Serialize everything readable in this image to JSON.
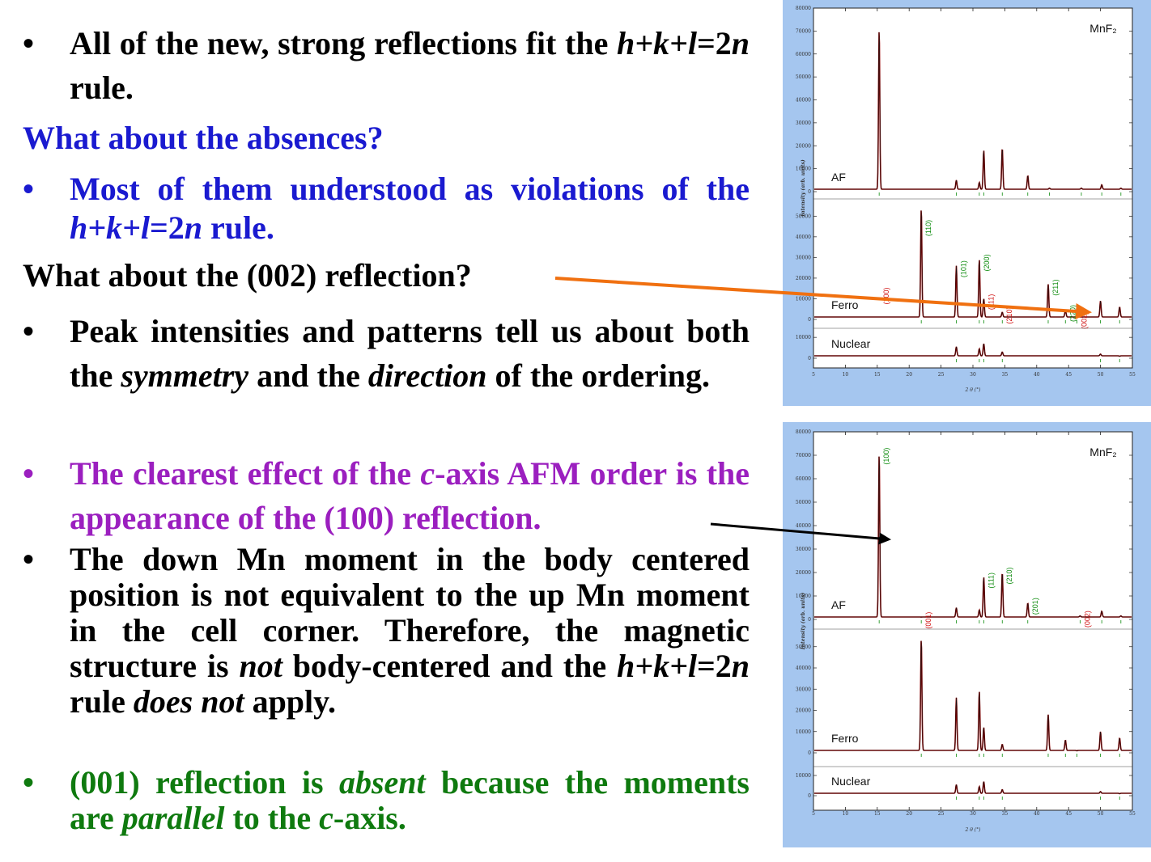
{
  "bullet_glyph": "•",
  "text": {
    "b1_a": "All of the new, strong reflections fit the",
    "b1_hkl": "h+k+l",
    "b1_eq": "=2",
    "b1_n": "n",
    "b1_rest": " rule.",
    "q1": "What about the absences?",
    "b2_a": "Most of them understood as violations of the",
    "b2_hkl": "h+k+l",
    "b2_eq": "=2",
    "b2_n": "n",
    "b2_rest": " rule.",
    "q2": "What about the (002) reflection?",
    "b3_a": "Peak intensities and patterns tell us about both the",
    "b3_sym": "symmetry",
    "b3_b": "and the",
    "b3_dir": "direction",
    "b3_c": "of the ordering.",
    "b4_a": "The clearest effect of the",
    "b4_c": "c",
    "b4_b": "-axis AFM order is the appearance of the (100) reflection.",
    "b5_a": "The down Mn moment in the body centered position is not equivalent to the up Mn moment in the cell corner. Therefore, the magnetic structure is",
    "b5_not": "not",
    "b5_b": "body-centered and the",
    "b5_hkl": "h+k+l",
    "b5_eq": "=2",
    "b5_n": "n",
    "b5_c": "rule",
    "b5_does": "does not",
    "b5_d": "apply.",
    "b6_a": "(001) reflection is",
    "b6_absent": "absent",
    "b6_b": "because the moments are",
    "b6_par": "parallel",
    "b6_c": "to the",
    "b6_cc": "c",
    "b6_d": "-axis."
  },
  "colors": {
    "blue": "#1a1ad0",
    "purple": "#9b1fbf",
    "green": "#0f7a0f",
    "panel_bg": "#a5c6ef",
    "orange_arrow": "#f07010",
    "black_arrow": "#000000",
    "calc_line": "#8b0000",
    "hkl_green": "#0a8a0a",
    "hkl_red": "#d01010"
  },
  "chart_data": [
    {
      "type": "line",
      "title": "MnF₂",
      "ylabel": "Intensity (arb. units)",
      "xlabel": "2 θ (°)",
      "xlim": [
        5,
        55
      ],
      "x_ticks": [
        5,
        10,
        15,
        20,
        25,
        30,
        35,
        40,
        45,
        50,
        55
      ],
      "panels": [
        {
          "name": "AF",
          "ylim": [
            0,
            80000
          ],
          "y_ticks": [
            0,
            10000,
            20000,
            30000,
            40000,
            50000,
            60000,
            70000,
            80000
          ],
          "peaks": [
            [
              15.3,
              71000
            ],
            [
              27.4,
              5000
            ],
            [
              31.0,
              4000
            ],
            [
              31.7,
              18000
            ],
            [
              34.6,
              19000
            ],
            [
              38.6,
              7000
            ],
            [
              42.0,
              1500
            ],
            [
              47.0,
              1500
            ],
            [
              50.2,
              3000
            ],
            [
              53.2,
              1500
            ]
          ],
          "hkl": []
        },
        {
          "name": "Ferro",
          "ylim": [
            0,
            56000
          ],
          "y_ticks": [
            0,
            10000,
            20000,
            30000,
            40000,
            50000
          ],
          "peaks": [
            [
              21.9,
              54000
            ],
            [
              27.4,
              26000
            ],
            [
              31.0,
              29000
            ],
            [
              31.7,
              10000
            ],
            [
              34.6,
              3500
            ],
            [
              41.8,
              17000
            ],
            [
              44.5,
              4500
            ],
            [
              46.3,
              1000
            ],
            [
              50.0,
              9000
            ],
            [
              53.0,
              6000
            ]
          ],
          "hkl": [
            {
              "label": "(110)",
              "x": 21.9,
              "color": "green"
            },
            {
              "label": "(101)",
              "x": 27.4,
              "color": "green"
            },
            {
              "label": "(200)",
              "x": 31.0,
              "color": "green"
            },
            {
              "label": "(111)",
              "x": 31.7,
              "color": "red"
            },
            {
              "label": "(210)",
              "x": 34.6,
              "color": "red"
            },
            {
              "label": "(211)",
              "x": 41.8,
              "color": "green"
            },
            {
              "label": "(220)",
              "x": 44.5,
              "color": "green"
            },
            {
              "label": "(002)",
              "x": 46.3,
              "color": "red"
            },
            {
              "label": "(100)",
              "x": 15.3,
              "color": "red"
            }
          ]
        },
        {
          "name": "Nuclear",
          "ylim": [
            0,
            12000
          ],
          "y_ticks": [
            0,
            10000
          ],
          "peaks": [
            [
              27.4,
              5500
            ],
            [
              31.0,
              4500
            ],
            [
              31.7,
              7000
            ],
            [
              34.6,
              3000
            ],
            [
              50.0,
              2000
            ],
            [
              53.0,
              1000
            ]
          ],
          "hkl": []
        }
      ]
    },
    {
      "type": "line",
      "title": "MnF₂",
      "ylabel": "Intensity (arb. units)",
      "xlabel": "2 θ (°)",
      "xlim": [
        5,
        55
      ],
      "x_ticks": [
        5,
        10,
        15,
        20,
        25,
        30,
        35,
        40,
        45,
        50,
        55
      ],
      "panels": [
        {
          "name": "AF",
          "ylim": [
            0,
            80000
          ],
          "y_ticks": [
            0,
            10000,
            20000,
            30000,
            40000,
            50000,
            60000,
            70000,
            80000
          ],
          "peaks": [
            [
              15.3,
              71000
            ],
            [
              21.9,
              1000
            ],
            [
              27.4,
              5000
            ],
            [
              31.0,
              4000
            ],
            [
              31.7,
              18000
            ],
            [
              34.6,
              20000
            ],
            [
              38.6,
              7000
            ],
            [
              46.8,
              1500
            ],
            [
              50.2,
              3500
            ],
            [
              53.2,
              1500
            ]
          ],
          "hkl": [
            {
              "label": "(100)",
              "x": 15.3,
              "color": "green"
            },
            {
              "label": "(001)",
              "x": 21.9,
              "color": "red"
            },
            {
              "label": "(111)",
              "x": 31.7,
              "color": "green"
            },
            {
              "label": "(210)",
              "x": 34.6,
              "color": "green"
            },
            {
              "label": "(201)",
              "x": 38.6,
              "color": "green"
            },
            {
              "label": "(002)",
              "x": 46.8,
              "color": "red"
            }
          ]
        },
        {
          "name": "Ferro",
          "ylim": [
            0,
            56000
          ],
          "y_ticks": [
            0,
            10000,
            20000,
            30000,
            40000,
            50000
          ],
          "peaks": [
            [
              21.9,
              54000
            ],
            [
              27.4,
              26000
            ],
            [
              31.0,
              29000
            ],
            [
              31.7,
              12000
            ],
            [
              34.6,
              4000
            ],
            [
              41.8,
              18000
            ],
            [
              44.5,
              6000
            ],
            [
              46.3,
              1000
            ],
            [
              50.0,
              10000
            ],
            [
              53.0,
              7000
            ]
          ],
          "hkl": []
        },
        {
          "name": "Nuclear",
          "ylim": [
            0,
            12000
          ],
          "y_ticks": [
            0,
            10000
          ],
          "peaks": [
            [
              27.4,
              5500
            ],
            [
              31.0,
              4500
            ],
            [
              31.7,
              7000
            ],
            [
              34.6,
              3000
            ],
            [
              50.0,
              2000
            ],
            [
              53.0,
              1000
            ]
          ],
          "hkl": []
        }
      ]
    }
  ]
}
